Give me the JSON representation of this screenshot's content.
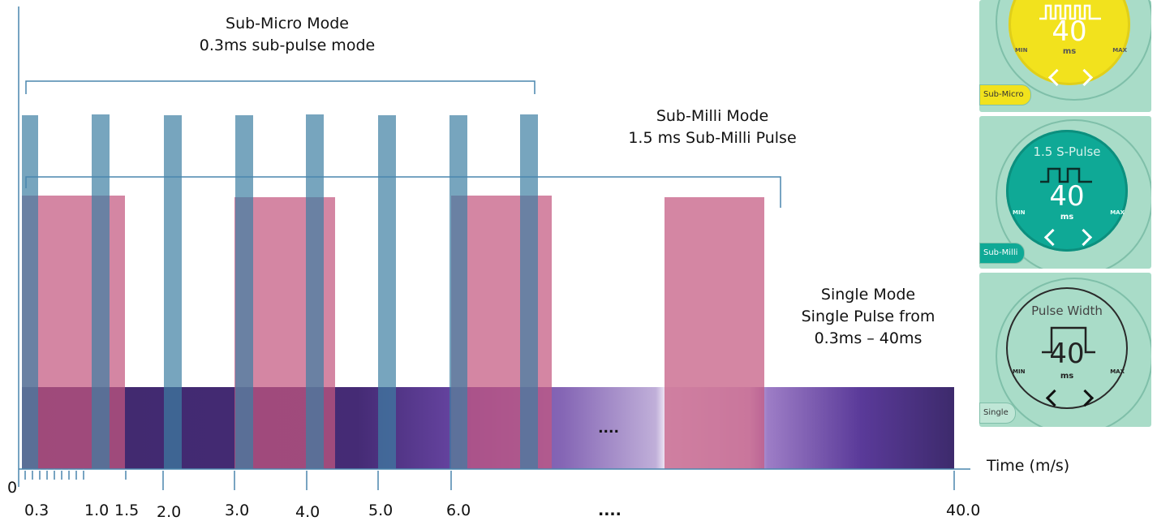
{
  "modes": {
    "sub_micro": {
      "title": "Sub-Micro Mode",
      "subtitle": "0.3ms sub-pulse mode"
    },
    "sub_milli": {
      "title": "Sub-Milli Mode",
      "subtitle": "1.5 ms Sub-Milli Pulse"
    },
    "single": {
      "title": "Single Mode",
      "line2": "Single Pulse from",
      "line3": "0.3ms – 40ms"
    }
  },
  "axis": {
    "origin_label": "0",
    "x_label": "Time (m/s)",
    "ticks": [
      "0.3",
      "1.0",
      "1.5",
      "2.0",
      "3.0",
      "4.0",
      "5.0",
      "6.0",
      "....",
      "40.0"
    ],
    "ellipsis_in_bar": "...."
  },
  "panels": [
    {
      "id": "sub-micro",
      "button": "Sub-Micro",
      "heading": "",
      "value": "40",
      "unit": "ms",
      "min": "MIN",
      "max": "MAX",
      "dial_color": "#f2e21d",
      "text_color": "#ffffff"
    },
    {
      "id": "sub-milli",
      "button": "Sub-Milli",
      "heading": "1.5 S-Pulse",
      "value": "40",
      "unit": "ms",
      "min": "MIN",
      "max": "MAX",
      "dial_color": "#0fa996",
      "text_color": "#ffffff"
    },
    {
      "id": "single",
      "button": "Single",
      "heading": "Pulse Width",
      "value": "40",
      "unit": "ms",
      "min": "MIN",
      "max": "MAX",
      "dial_color": "#a9dcc8",
      "text_color": "#222222"
    }
  ],
  "colors": {
    "sub_micro_pulse": "#3d7fa3",
    "sub_milli_pulse": "#c4587f",
    "single_bar_dark": "#42296f",
    "single_bar_light": "#e6dbef",
    "axis": "#4a86ad"
  }
}
